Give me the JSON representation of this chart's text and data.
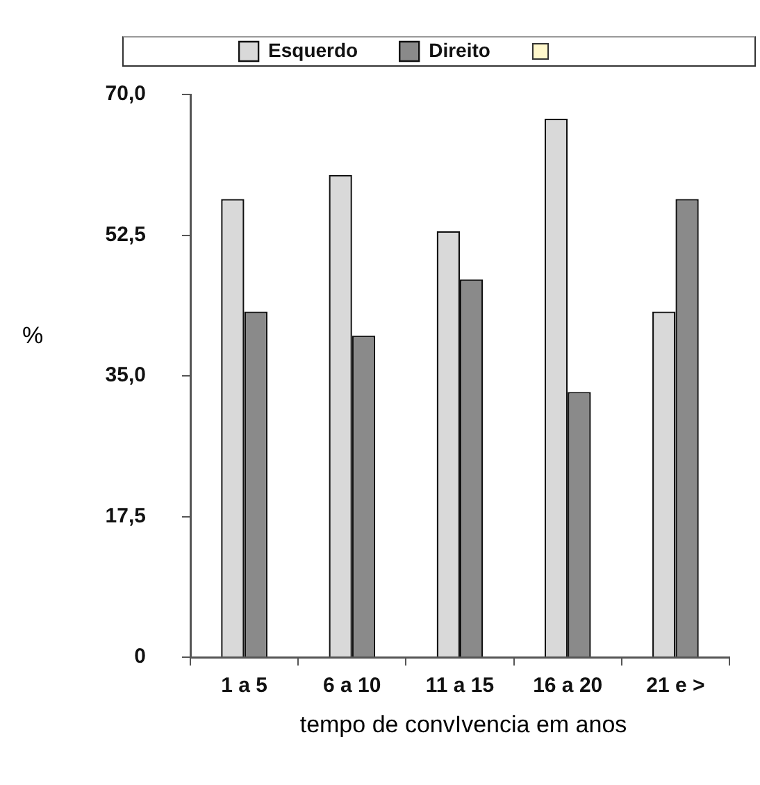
{
  "chart_data": {
    "type": "bar",
    "xlabel": "tempo de convIvencia em anos",
    "ylabel": "%",
    "categories": [
      "1 a 5",
      "6 a 10",
      "11 a 15",
      "16 a 20",
      "21 e >"
    ],
    "series": [
      {
        "name": "Esquerdo",
        "color": "#d9d9d9",
        "values": [
          57,
          60,
          53,
          67,
          43
        ]
      },
      {
        "name": "Direito",
        "color": "#8a8a8a",
        "values": [
          43,
          40,
          47,
          33,
          57
        ]
      }
    ],
    "ylim": [
      0,
      70
    ],
    "yticks": [
      0,
      {
        "value": 17.5,
        "label": "17,5"
      },
      {
        "value": 35,
        "label": "35,0"
      },
      {
        "value": 52.5,
        "label": "52,5"
      },
      {
        "value": 70,
        "label": "70,0"
      }
    ],
    "legend": "top"
  }
}
